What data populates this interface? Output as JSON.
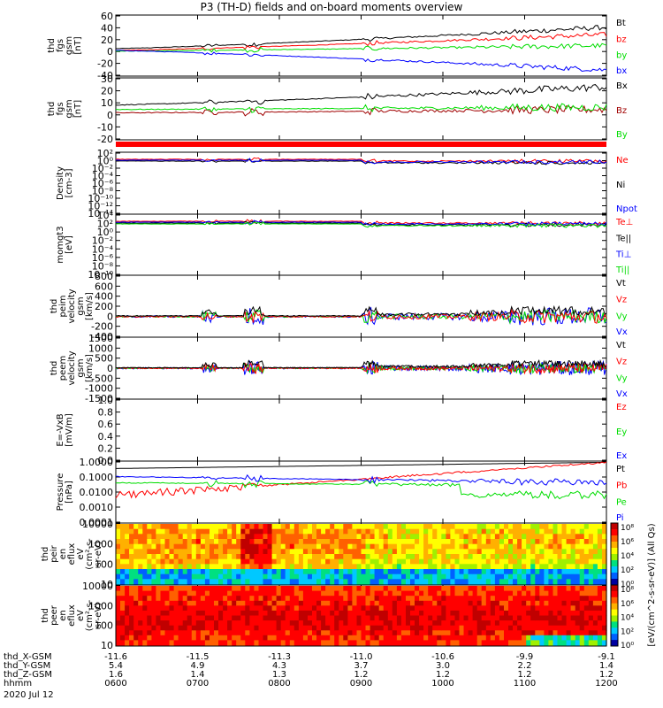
{
  "title": "P3 (TH-D) fields and on-board moments overview",
  "colors": {
    "black": "#000000",
    "red": "#ff0000",
    "green": "#00dd00",
    "blue": "#0000ff",
    "darkred": "#a00000"
  },
  "chart_data": [
    {
      "type": "line",
      "ylabel": [
        "thd",
        "fgs",
        "gsm",
        "[nT]"
      ],
      "yticks": [
        "60",
        "40",
        "20",
        "0",
        "-20",
        "-40"
      ],
      "ylim": [
        -40,
        60
      ],
      "series": [
        {
          "name": "Bt",
          "color": "#000000",
          "start": 5,
          "end": 40
        },
        {
          "name": "bz",
          "color": "#ff0000",
          "start": 2,
          "end": 28
        },
        {
          "name": "by",
          "color": "#00dd00",
          "start": 1,
          "end": 10
        },
        {
          "name": "bx",
          "color": "#0000ff",
          "start": 2,
          "end": -30
        }
      ]
    },
    {
      "type": "line",
      "ylabel": [
        "thd",
        "fgs",
        "gsm",
        "[nT]"
      ],
      "yticks": [
        "30",
        "20",
        "10",
        "0",
        "-10",
        "-20"
      ],
      "ylim": [
        -25,
        30
      ],
      "series": [
        {
          "name": "Bx",
          "color": "#000000",
          "start": 6,
          "end": 22
        },
        {
          "name": "Bz",
          "color": "#a00000",
          "start": -1,
          "end": 2
        },
        {
          "name": "By",
          "color": "#00dd00",
          "start": 2,
          "end": 4
        }
      ]
    },
    {
      "type": "line",
      "ylabel": [
        "Density",
        "[cm-3]"
      ],
      "yticks": [
        "10²",
        "10⁰",
        "10⁻²",
        "10⁻⁴",
        "10⁻⁶",
        "10⁻⁸",
        "10⁻¹⁰",
        "10⁻¹²",
        "10⁻¹⁴"
      ],
      "scale": "log",
      "series": [
        {
          "name": "Ne",
          "color": "#ff0000"
        },
        {
          "name": "Ni",
          "color": "#000000"
        },
        {
          "name": "Npot",
          "color": "#0000ff"
        }
      ]
    },
    {
      "type": "line",
      "ylabel": [
        "momgt3",
        "[eV]"
      ],
      "yticks": [
        "10⁴",
        "10²",
        "10⁰",
        "10⁻²",
        "10⁻⁴",
        "10⁻⁶",
        "10⁻⁸",
        "10⁻¹⁰"
      ],
      "scale": "log",
      "series": [
        {
          "name": "Te⊥",
          "color": "#ff0000"
        },
        {
          "name": "Te||",
          "color": "#000000"
        },
        {
          "name": "Ti⊥",
          "color": "#0000ff"
        },
        {
          "name": "Ti||",
          "color": "#00dd00"
        }
      ]
    },
    {
      "type": "line",
      "ylabel": [
        "thd",
        "peim",
        "velocity",
        "gsm",
        "[km/s]"
      ],
      "yticks": [
        "800",
        "600",
        "400",
        "200",
        "0",
        "-200",
        "-400"
      ],
      "ylim": [
        -400,
        800
      ],
      "series": [
        {
          "name": "Vt",
          "color": "#000000"
        },
        {
          "name": "Vz",
          "color": "#ff0000"
        },
        {
          "name": "Vy",
          "color": "#00dd00"
        },
        {
          "name": "Vx",
          "color": "#0000ff"
        }
      ]
    },
    {
      "type": "line",
      "ylabel": [
        "thd",
        "peem",
        "velocity",
        "gsm",
        "[km/s]"
      ],
      "yticks": [
        "1500",
        "1000",
        "500",
        "0",
        "-500",
        "-1000",
        "-1500"
      ],
      "ylim": [
        -1500,
        1500
      ],
      "series": [
        {
          "name": "Vt",
          "color": "#000000"
        },
        {
          "name": "Vz",
          "color": "#ff0000"
        },
        {
          "name": "Vy",
          "color": "#00dd00"
        },
        {
          "name": "Vx",
          "color": "#0000ff"
        }
      ]
    },
    {
      "type": "line",
      "ylabel": [
        "E=-VxB",
        "[mV/m]"
      ],
      "yticks": [
        "1.0",
        "0.8",
        "0.6",
        "0.4",
        "0.2",
        "0.0"
      ],
      "ylim": [
        0,
        1
      ],
      "series": [
        {
          "name": "Ez",
          "color": "#ff0000"
        },
        {
          "name": "Ey",
          "color": "#00dd00"
        },
        {
          "name": "Ex",
          "color": "#0000ff"
        }
      ]
    },
    {
      "type": "line",
      "ylabel": [
        "Pressure",
        "[nPa]"
      ],
      "yticks": [
        "1.0000",
        "0.1000",
        "0.0100",
        "0.0010",
        "0.0001"
      ],
      "scale": "log",
      "series": [
        {
          "name": "Pt",
          "color": "#000000"
        },
        {
          "name": "Pb",
          "color": "#ff0000"
        },
        {
          "name": "Pe",
          "color": "#00dd00"
        },
        {
          "name": "Pi",
          "color": "#0000ff"
        }
      ]
    },
    {
      "type": "heatmap",
      "ylabel": [
        "thd",
        "peir",
        "en",
        "eflux",
        "eV",
        "(cm²-s-",
        "sr-eV)"
      ],
      "yticks": [
        "10000",
        "1000",
        "100",
        "10"
      ],
      "scale": "log"
    },
    {
      "type": "heatmap",
      "ylabel": [
        "thd",
        "peer",
        "en",
        "eflux",
        "eV",
        "(cm²-s-",
        "sr-eV)"
      ],
      "yticks": [
        "10000",
        "1000",
        "100",
        "10"
      ],
      "scale": "log"
    }
  ],
  "colorbar": {
    "label": "[eV/(cm^2-s-sr-eV)] (All Qs)",
    "ticks_top": [
      "10⁸",
      "10⁶",
      "10⁴",
      "10²",
      "10⁰"
    ],
    "ticks_bottom": [
      "10⁸",
      "10⁶",
      "10⁴",
      "10²",
      "10⁰"
    ]
  },
  "xaxis": {
    "rows": [
      {
        "label": "thd_X-GSM",
        "values": [
          "-11.6",
          "-11.5",
          "-11.3",
          "-11.0",
          "-10.6",
          "-9.9",
          "-9.1"
        ]
      },
      {
        "label": "thd_Y-GSM",
        "values": [
          "5.4",
          "4.9",
          "4.3",
          "3.7",
          "3.0",
          "2.2",
          "1.4"
        ]
      },
      {
        "label": "thd_Z-GSM",
        "values": [
          "1.6",
          "1.4",
          "1.3",
          "1.2",
          "1.2",
          "1.2",
          "1.2"
        ]
      },
      {
        "label": "hhmm",
        "values": [
          "0600",
          "0700",
          "0800",
          "0900",
          "1000",
          "1100",
          "1200"
        ]
      }
    ],
    "date": "2020 Jul 12"
  }
}
